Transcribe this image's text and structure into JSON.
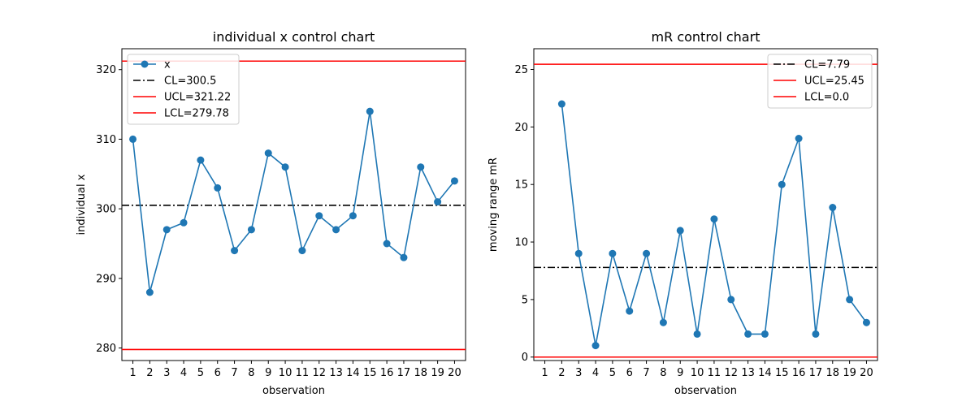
{
  "chart_data": [
    {
      "type": "line",
      "title": "individual x control chart",
      "xlabel": "observation",
      "ylabel": "individual x",
      "categories": [
        "1",
        "2",
        "3",
        "4",
        "5",
        "6",
        "7",
        "8",
        "9",
        "10",
        "11",
        "12",
        "13",
        "14",
        "15",
        "16",
        "17",
        "18",
        "19",
        "20"
      ],
      "ylim": [
        278.2,
        323.0
      ],
      "yticks": [
        "280",
        "290",
        "300",
        "310",
        "320"
      ],
      "grid": false,
      "legend_position": "upper-left",
      "series": [
        {
          "name": "x",
          "values": [
            310,
            288,
            297,
            298,
            307,
            303,
            294,
            297,
            308,
            306,
            294,
            299,
            297,
            299,
            314,
            295,
            293,
            306,
            301,
            304
          ],
          "color": "#1f77b4",
          "marker": "circle"
        }
      ],
      "reference_lines": [
        {
          "name": "CL=300.5",
          "value": 300.5,
          "color": "#000000",
          "style": "dashdot"
        },
        {
          "name": "UCL=321.22",
          "value": 321.22,
          "color": "#ff0000",
          "style": "solid"
        },
        {
          "name": "LCL=279.78",
          "value": 279.78,
          "color": "#ff0000",
          "style": "solid"
        }
      ]
    },
    {
      "type": "line",
      "title": "mR control chart",
      "xlabel": "observation",
      "ylabel": "moving range mR",
      "categories": [
        "1",
        "2",
        "3",
        "4",
        "5",
        "6",
        "7",
        "8",
        "9",
        "10",
        "11",
        "12",
        "13",
        "14",
        "15",
        "16",
        "17",
        "18",
        "19",
        "20"
      ],
      "ylim": [
        -0.3,
        26.8
      ],
      "yticks": [
        "0",
        "5",
        "10",
        "15",
        "20",
        "25"
      ],
      "grid": false,
      "legend_position": "upper-right",
      "series": [
        {
          "name": "",
          "values": [
            null,
            22,
            9,
            1,
            9,
            4,
            9,
            3,
            11,
            2,
            12,
            5,
            2,
            2,
            15,
            19,
            2,
            13,
            5,
            3
          ],
          "color": "#1f77b4",
          "marker": "circle"
        }
      ],
      "reference_lines": [
        {
          "name": "CL=7.79",
          "value": 7.79,
          "color": "#000000",
          "style": "dashdot"
        },
        {
          "name": "UCL=25.45",
          "value": 25.45,
          "color": "#ff0000",
          "style": "solid"
        },
        {
          "name": "LCL=0.0",
          "value": 0.0,
          "color": "#ff0000",
          "style": "solid"
        }
      ]
    }
  ]
}
